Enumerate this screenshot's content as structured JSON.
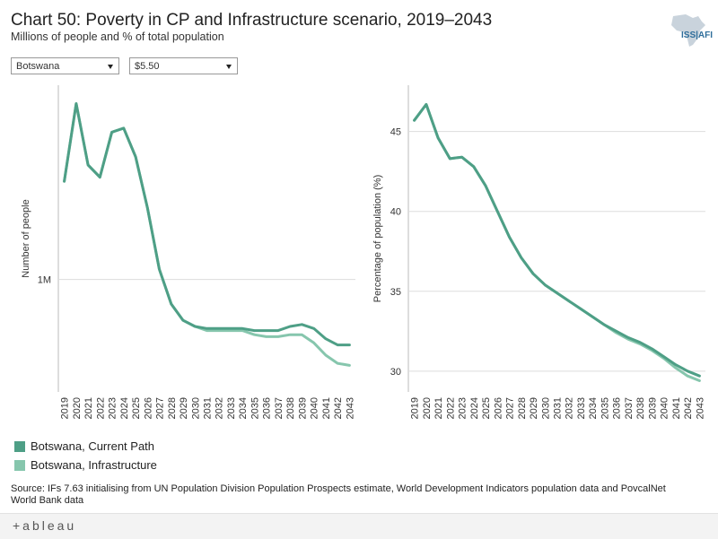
{
  "header": {
    "title": "Chart 50: Poverty in CP and Infrastructure scenario, 2019–2043",
    "subtitle": "Millions of people and % of total population",
    "logo_text": "ISS|AFI"
  },
  "filters": {
    "country": "Botswana",
    "threshold": "$5.50"
  },
  "colors": {
    "current_path": "#4e9f86",
    "infrastructure": "#86c6ad",
    "grid": "#dddddd",
    "axis": "#bbbbbb"
  },
  "chart_data": [
    {
      "type": "line",
      "ylabel": "Number of people",
      "xlabel": "",
      "ylim": [
        0.45,
        1.95
      ],
      "y_ticks": [
        {
          "value": 1.0,
          "label": "1M"
        }
      ],
      "y_unit": "millions of people",
      "x": [
        "2019",
        "2020",
        "2021",
        "2022",
        "2023",
        "2024",
        "2025",
        "2026",
        "2027",
        "2028",
        "2029",
        "2030",
        "2031",
        "2032",
        "2033",
        "2034",
        "2035",
        "2036",
        "2037",
        "2038",
        "2039",
        "2040",
        "2041",
        "2042",
        "2043"
      ],
      "series": [
        {
          "name": "Botswana, Current Path",
          "values": [
            1.48,
            1.86,
            1.56,
            1.5,
            1.72,
            1.74,
            1.6,
            1.35,
            1.05,
            0.88,
            0.8,
            0.77,
            0.76,
            0.76,
            0.76,
            0.76,
            0.75,
            0.75,
            0.75,
            0.77,
            0.78,
            0.76,
            0.71,
            0.68,
            0.68
          ]
        },
        {
          "name": "Botswana, Infrastructure",
          "values": [
            1.48,
            1.86,
            1.56,
            1.5,
            1.72,
            1.74,
            1.6,
            1.35,
            1.05,
            0.88,
            0.8,
            0.77,
            0.75,
            0.75,
            0.75,
            0.75,
            0.73,
            0.72,
            0.72,
            0.73,
            0.73,
            0.69,
            0.63,
            0.59,
            0.58
          ]
        }
      ]
    },
    {
      "type": "line",
      "ylabel": "Percentage of population (%)",
      "xlabel": "",
      "ylim": [
        28.7,
        47.9
      ],
      "y_ticks": [
        {
          "value": 30,
          "label": "30"
        },
        {
          "value": 35,
          "label": "35"
        },
        {
          "value": 40,
          "label": "40"
        },
        {
          "value": 45,
          "label": "45"
        }
      ],
      "x": [
        "2019",
        "2020",
        "2021",
        "2022",
        "2023",
        "2024",
        "2025",
        "2026",
        "2027",
        "2028",
        "2029",
        "2030",
        "2031",
        "2032",
        "2033",
        "2034",
        "2035",
        "2036",
        "2037",
        "2038",
        "2039",
        "2040",
        "2041",
        "2042",
        "2043"
      ],
      "series": [
        {
          "name": "Botswana, Current Path",
          "values": [
            45.7,
            46.7,
            44.6,
            43.3,
            43.4,
            42.8,
            41.6,
            40.0,
            38.4,
            37.1,
            36.1,
            35.4,
            34.9,
            34.4,
            33.9,
            33.4,
            32.9,
            32.5,
            32.1,
            31.8,
            31.4,
            30.9,
            30.4,
            30.0,
            29.7
          ]
        },
        {
          "name": "Botswana, Infrastructure",
          "values": [
            45.7,
            46.7,
            44.6,
            43.3,
            43.4,
            42.8,
            41.6,
            40.0,
            38.4,
            37.1,
            36.1,
            35.4,
            34.9,
            34.4,
            33.9,
            33.4,
            32.9,
            32.4,
            32.0,
            31.7,
            31.3,
            30.8,
            30.2,
            29.7,
            29.4
          ]
        }
      ]
    }
  ],
  "legend": [
    {
      "label": "Botswana, Current Path"
    },
    {
      "label": "Botswana, Infrastructure"
    }
  ],
  "source": "Source: IFs 7.63 initialising from UN Population Division Population Prospects estimate, World Development Indicators population data and PovcalNet World Bank data",
  "footer": {
    "brand": "+ableau"
  }
}
